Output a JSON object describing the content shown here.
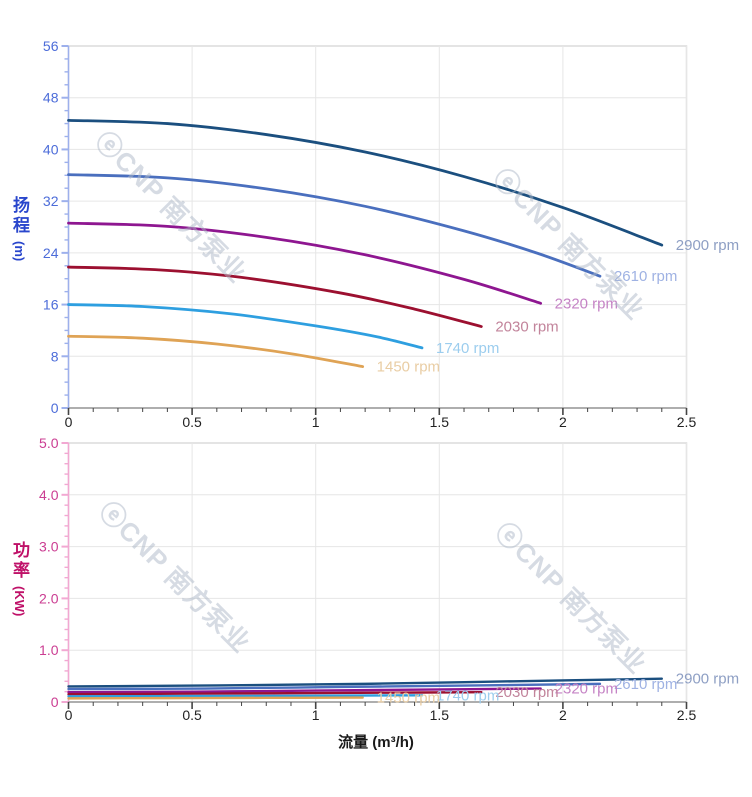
{
  "watermark": {
    "text": "ⓔCNP 南方泵业",
    "color": "#aeb9c9"
  },
  "chart_data": [
    {
      "type": "line",
      "name": "head-curves",
      "title": "",
      "xlabel": "",
      "ylabel": "扬程",
      "ylabel_unit": "(m)",
      "xlim": [
        0,
        2.5
      ],
      "ylim": [
        0,
        56
      ],
      "grid": true,
      "legend_position": "end-of-line-labels",
      "xticks": {
        "values": [
          0,
          0.5,
          1,
          1.5,
          2,
          2.5
        ],
        "labels": [
          "0",
          "0.5",
          "1",
          "1.5",
          "2",
          "2.5"
        ]
      },
      "yticks": {
        "values": [
          0,
          8,
          16,
          24,
          32,
          40,
          48,
          56
        ],
        "labels": [
          "0",
          "8",
          "16",
          "24",
          "32",
          "40",
          "48",
          "56"
        ]
      },
      "axis_color": "#9db0ec",
      "tick_label_color": "#4c6cd9",
      "series": [
        {
          "name": "2900 rpm",
          "color": "#1b4f7f",
          "label_color": "#8e9fc4",
          "points": [
            [
              0,
              44.5
            ],
            [
              0.4,
              44.0
            ],
            [
              0.8,
              42.3
            ],
            [
              1.2,
              39.6
            ],
            [
              1.6,
              35.8
            ],
            [
              2.0,
              31.0
            ],
            [
              2.4,
              25.2
            ]
          ]
        },
        {
          "name": "2610 rpm",
          "color": "#4a6fbe",
          "label_color": "#9fb2e3",
          "points": [
            [
              0,
              36.1
            ],
            [
              0.4,
              35.6
            ],
            [
              0.8,
              33.9
            ],
            [
              1.2,
              31.2
            ],
            [
              1.6,
              27.4
            ],
            [
              1.9,
              23.9
            ],
            [
              2.15,
              20.4
            ]
          ]
        },
        {
          "name": "2320 rpm",
          "color": "#8e1690",
          "label_color": "#c583c5",
          "points": [
            [
              0,
              28.6
            ],
            [
              0.4,
              28.1
            ],
            [
              0.8,
              26.4
            ],
            [
              1.2,
              23.7
            ],
            [
              1.6,
              19.9
            ],
            [
              1.91,
              16.2
            ]
          ]
        },
        {
          "name": "2030 rpm",
          "color": "#9c1030",
          "label_color": "#c2849b",
          "points": [
            [
              0,
              21.8
            ],
            [
              0.35,
              21.4
            ],
            [
              0.7,
              20.2
            ],
            [
              1.1,
              17.8
            ],
            [
              1.4,
              15.3
            ],
            [
              1.67,
              12.6
            ]
          ]
        },
        {
          "name": "1740 rpm",
          "color": "#2e9fe0",
          "label_color": "#9ccdee",
          "points": [
            [
              0,
              16.0
            ],
            [
              0.3,
              15.7
            ],
            [
              0.65,
              14.6
            ],
            [
              1.0,
              12.7
            ],
            [
              1.25,
              11.0
            ],
            [
              1.43,
              9.3
            ]
          ]
        },
        {
          "name": "1450 rpm",
          "color": "#dfa355",
          "label_color": "#e9cda4",
          "points": [
            [
              0,
              11.1
            ],
            [
              0.3,
              10.8
            ],
            [
              0.6,
              9.9
            ],
            [
              0.9,
              8.4
            ],
            [
              1.19,
              6.4
            ]
          ]
        }
      ]
    },
    {
      "type": "line",
      "name": "power-curves",
      "title": "",
      "xlabel": "流量 (m³/h)",
      "ylabel": "功率",
      "ylabel_unit": "(KW)",
      "xlim": [
        0,
        2.5
      ],
      "ylim": [
        0,
        5.0
      ],
      "grid": true,
      "legend_position": "end-of-line-labels",
      "xticks": {
        "values": [
          0,
          0.5,
          1,
          1.5,
          2,
          2.5
        ],
        "labels": [
          "0",
          "0.5",
          "1",
          "1.5",
          "2",
          "2.5"
        ]
      },
      "yticks": {
        "values": [
          0,
          1,
          2,
          3,
          4,
          5
        ],
        "labels": [
          "0",
          "1.0",
          "2.0",
          "3.0",
          "4.0",
          "5.0"
        ]
      },
      "axis_color": "#f2a8d2",
      "tick_label_color": "#cb3d92",
      "series": [
        {
          "name": "2900 rpm",
          "color": "#1b4f7f",
          "label_color": "#8e9fc4",
          "points": [
            [
              0,
              0.3
            ],
            [
              0.6,
              0.32
            ],
            [
              1.2,
              0.35
            ],
            [
              1.8,
              0.4
            ],
            [
              2.4,
              0.45
            ]
          ]
        },
        {
          "name": "2610 rpm",
          "color": "#4a6fbe",
          "label_color": "#9fb2e3",
          "points": [
            [
              0,
              0.25
            ],
            [
              0.55,
              0.26
            ],
            [
              1.1,
              0.29
            ],
            [
              1.65,
              0.32
            ],
            [
              2.15,
              0.35
            ]
          ]
        },
        {
          "name": "2320 rpm",
          "color": "#8e1690",
          "label_color": "#c583c5",
          "points": [
            [
              0,
              0.19
            ],
            [
              0.5,
              0.2
            ],
            [
              1.0,
              0.22
            ],
            [
              1.45,
              0.24
            ],
            [
              1.91,
              0.26
            ]
          ]
        },
        {
          "name": "2030 rpm",
          "color": "#9c1030",
          "label_color": "#c2849b",
          "points": [
            [
              0,
              0.15
            ],
            [
              0.45,
              0.16
            ],
            [
              0.9,
              0.17
            ],
            [
              1.3,
              0.18
            ],
            [
              1.67,
              0.19
            ]
          ]
        },
        {
          "name": "1740 rpm",
          "color": "#2e9fe0",
          "label_color": "#9ccdee",
          "points": [
            [
              0,
              0.11
            ],
            [
              0.5,
              0.115
            ],
            [
              0.95,
              0.12
            ],
            [
              1.43,
              0.13
            ]
          ]
        },
        {
          "name": "1450 rpm",
          "color": "#dfa355",
          "label_color": "#e9cda4",
          "points": [
            [
              0,
              0.07
            ],
            [
              0.4,
              0.075
            ],
            [
              0.8,
              0.08
            ],
            [
              1.19,
              0.085
            ]
          ]
        }
      ]
    }
  ]
}
